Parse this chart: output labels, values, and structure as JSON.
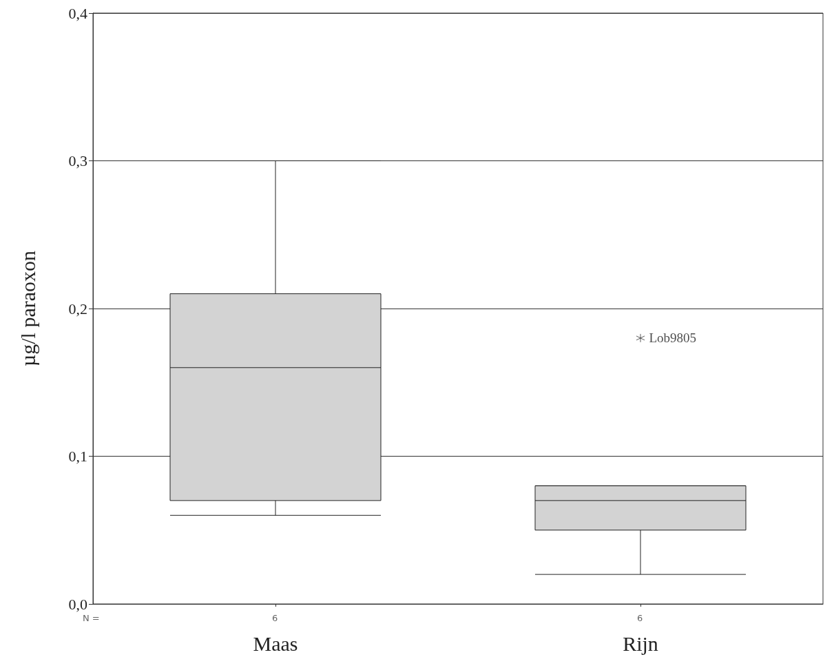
{
  "chart_data": {
    "type": "box",
    "ylabel": "µg/l paraoxon",
    "categories": [
      "Maas",
      "Rijn"
    ],
    "boxes": [
      {
        "low": 0.06,
        "q1": 0.07,
        "median": 0.16,
        "q3": 0.21,
        "high": 0.3
      },
      {
        "low": 0.02,
        "q1": 0.05,
        "median": 0.07,
        "q3": 0.08,
        "high": 0.08,
        "outliers": [
          0.18
        ]
      }
    ],
    "color": "#d3d3d3",
    "ylim": [
      0,
      0.4
    ],
    "yticks": [
      {
        "value": 0,
        "label": "0,0"
      },
      {
        "value": 0.1,
        "label": "0,1"
      },
      {
        "value": 0.2,
        "label": "0,2"
      },
      {
        "value": 0.3,
        "label": "0,3"
      },
      {
        "value": 0.4,
        "label": "0,4"
      }
    ],
    "grid": "y",
    "annotations": [
      "N =",
      "6",
      "6",
      "Lob9805"
    ]
  }
}
